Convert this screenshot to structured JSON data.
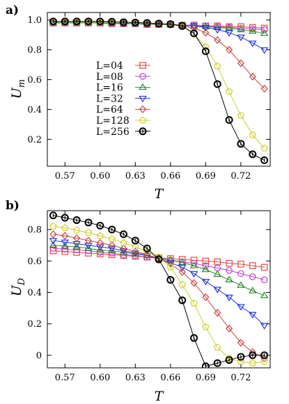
{
  "chart_data": [
    {
      "type": "line",
      "panel_label": "a)",
      "xlabel": "T",
      "ylabel": "U_m",
      "ylabel_main": "U",
      "ylabel_sub": "m",
      "xlim": [
        0.555,
        0.745
      ],
      "ylim": [
        0.02,
        1.05
      ],
      "xticks": [
        0.57,
        0.6,
        0.63,
        0.66,
        0.69,
        0.72
      ],
      "xtick_labels": [
        "0.57",
        "0.60",
        "0.63",
        "0.66",
        "0.69",
        "0.72"
      ],
      "yticks": [
        0.2,
        0.4,
        0.6,
        0.8,
        1.0
      ],
      "ytick_labels": [
        "0.2",
        "0.4",
        "0.6",
        "0.8",
        "1.0"
      ],
      "legend_position": "center-left",
      "x": [
        0.56,
        0.57,
        0.58,
        0.59,
        0.6,
        0.61,
        0.62,
        0.63,
        0.64,
        0.65,
        0.66,
        0.67,
        0.68,
        0.69,
        0.7,
        0.71,
        0.72,
        0.73,
        0.74
      ],
      "series": [
        {
          "name": "L=04",
          "color": "#e8453c",
          "marker": "square",
          "values": [
            0.98,
            0.98,
            0.98,
            0.98,
            0.98,
            0.975,
            0.975,
            0.975,
            0.97,
            0.97,
            0.97,
            0.965,
            0.965,
            0.96,
            0.96,
            0.955,
            0.955,
            0.95,
            0.945
          ]
        },
        {
          "name": "L=08",
          "color": "#c040d8",
          "marker": "circle",
          "values": [
            0.98,
            0.98,
            0.98,
            0.98,
            0.98,
            0.975,
            0.975,
            0.975,
            0.97,
            0.97,
            0.97,
            0.965,
            0.965,
            0.96,
            0.955,
            0.95,
            0.945,
            0.94,
            0.935
          ]
        },
        {
          "name": "L=16",
          "color": "#2a8a2a",
          "marker": "triangle-up",
          "values": [
            0.98,
            0.98,
            0.98,
            0.98,
            0.98,
            0.978,
            0.976,
            0.975,
            0.972,
            0.97,
            0.968,
            0.965,
            0.96,
            0.955,
            0.95,
            0.945,
            0.935,
            0.925,
            0.91
          ]
        },
        {
          "name": "L=32",
          "color": "#2233dd",
          "marker": "triangle-down",
          "values": [
            0.985,
            0.985,
            0.985,
            0.985,
            0.984,
            0.983,
            0.982,
            0.98,
            0.977,
            0.974,
            0.97,
            0.965,
            0.96,
            0.95,
            0.935,
            0.915,
            0.885,
            0.845,
            0.8
          ]
        },
        {
          "name": "L=64",
          "color": "#c84040",
          "marker": "diamond",
          "values": [
            0.985,
            0.985,
            0.985,
            0.985,
            0.984,
            0.983,
            0.982,
            0.98,
            0.977,
            0.974,
            0.97,
            0.962,
            0.945,
            0.915,
            0.865,
            0.8,
            0.71,
            0.62,
            0.54
          ]
        },
        {
          "name": "L=128",
          "color": "#cfcf2a",
          "marker": "pentagon",
          "values": [
            0.985,
            0.985,
            0.985,
            0.985,
            0.984,
            0.983,
            0.982,
            0.98,
            0.977,
            0.974,
            0.97,
            0.955,
            0.91,
            0.82,
            0.69,
            0.52,
            0.36,
            0.23,
            0.14
          ]
        },
        {
          "name": "L=256",
          "color": "#000000",
          "marker": "circle-open",
          "values": [
            0.99,
            0.99,
            0.99,
            0.99,
            0.99,
            0.988,
            0.985,
            0.983,
            0.98,
            0.976,
            0.972,
            0.96,
            0.91,
            0.79,
            0.57,
            0.33,
            0.17,
            0.1,
            0.06
          ]
        }
      ]
    },
    {
      "type": "line",
      "panel_label": "b)",
      "xlabel": "T",
      "ylabel": "U_D",
      "ylabel_main": "U",
      "ylabel_sub": "D",
      "xlim": [
        0.555,
        0.745
      ],
      "ylim": [
        -0.08,
        0.92
      ],
      "xticks": [
        0.57,
        0.6,
        0.63,
        0.66,
        0.69,
        0.72
      ],
      "xtick_labels": [
        "0.57",
        "0.60",
        "0.63",
        "0.66",
        "0.69",
        "0.72"
      ],
      "yticks": [
        0,
        0.2,
        0.4,
        0.6,
        0.8
      ],
      "ytick_labels": [
        "0",
        "0.2",
        "0.4",
        "0.6",
        "0.8"
      ],
      "x": [
        0.56,
        0.57,
        0.58,
        0.59,
        0.6,
        0.61,
        0.62,
        0.63,
        0.64,
        0.65,
        0.66,
        0.67,
        0.68,
        0.69,
        0.7,
        0.71,
        0.72,
        0.73,
        0.74
      ],
      "series": [
        {
          "name": "L=04",
          "color": "#e8453c",
          "marker": "square",
          "values": [
            0.665,
            0.66,
            0.655,
            0.65,
            0.645,
            0.64,
            0.635,
            0.63,
            0.625,
            0.62,
            0.615,
            0.61,
            0.605,
            0.6,
            0.595,
            0.585,
            0.58,
            0.57,
            0.56
          ]
        },
        {
          "name": "L=08",
          "color": "#c040d8",
          "marker": "circle",
          "values": [
            0.68,
            0.675,
            0.67,
            0.665,
            0.655,
            0.65,
            0.64,
            0.635,
            0.625,
            0.615,
            0.605,
            0.595,
            0.585,
            0.57,
            0.555,
            0.54,
            0.52,
            0.5,
            0.48
          ]
        },
        {
          "name": "L=16",
          "color": "#2a8a2a",
          "marker": "triangle-up",
          "values": [
            0.7,
            0.695,
            0.69,
            0.68,
            0.67,
            0.665,
            0.655,
            0.645,
            0.635,
            0.62,
            0.605,
            0.59,
            0.57,
            0.545,
            0.515,
            0.48,
            0.445,
            0.41,
            0.38
          ]
        },
        {
          "name": "L=32",
          "color": "#2233dd",
          "marker": "triangle-down",
          "values": [
            0.73,
            0.72,
            0.71,
            0.7,
            0.69,
            0.68,
            0.665,
            0.65,
            0.635,
            0.615,
            0.59,
            0.56,
            0.52,
            0.47,
            0.42,
            0.37,
            0.31,
            0.26,
            0.19
          ]
        },
        {
          "name": "L=64",
          "color": "#c84040",
          "marker": "diamond",
          "values": [
            0.77,
            0.76,
            0.745,
            0.73,
            0.715,
            0.7,
            0.68,
            0.66,
            0.64,
            0.615,
            0.58,
            0.53,
            0.46,
            0.37,
            0.27,
            0.17,
            0.08,
            0.02,
            -0.02
          ]
        },
        {
          "name": "L=128",
          "color": "#cfcf2a",
          "marker": "pentagon",
          "values": [
            0.82,
            0.81,
            0.795,
            0.78,
            0.76,
            0.74,
            0.715,
            0.69,
            0.66,
            0.625,
            0.56,
            0.45,
            0.33,
            0.18,
            0.05,
            -0.02,
            -0.04,
            -0.05,
            -0.04
          ]
        },
        {
          "name": "L=256",
          "color": "#000000",
          "marker": "circle-open",
          "values": [
            0.89,
            0.875,
            0.86,
            0.845,
            0.825,
            0.8,
            0.77,
            0.73,
            0.68,
            0.61,
            0.48,
            0.35,
            0.11,
            -0.07,
            -0.05,
            -0.03,
            -0.01,
            0.0,
            0.0
          ]
        }
      ]
    }
  ]
}
